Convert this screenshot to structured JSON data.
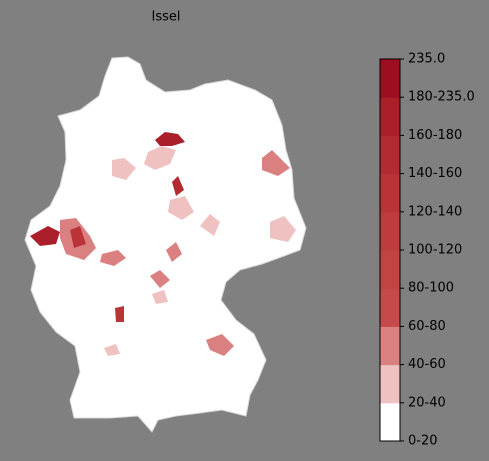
{
  "title": "Issel",
  "legend": {
    "labels": [
      "0-20",
      "20-40",
      "40-60",
      "60-80",
      "80-100",
      "100-120",
      "120-140",
      "140-160",
      "160-180",
      "180-235.0",
      "235.0"
    ],
    "colors": [
      "#ffffff",
      "#efc1c1",
      "#db8080",
      "#c74a4a",
      "#c34343",
      "#bf3c3e",
      "#ba3437",
      "#b32b31",
      "#aa1f29",
      "#9e0e20"
    ]
  }
}
